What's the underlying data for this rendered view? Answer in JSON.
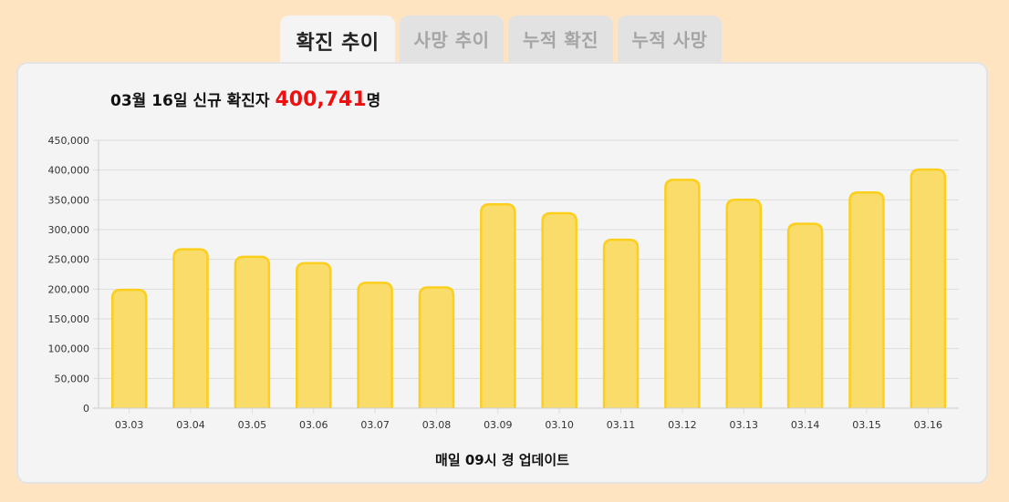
{
  "tabs": [
    {
      "label": "확진 추이",
      "active": true
    },
    {
      "label": "사망 추이",
      "active": false
    },
    {
      "label": "누적 확진",
      "active": false
    },
    {
      "label": "누적 사망",
      "active": false
    }
  ],
  "headline": {
    "prefix": "03월 16일 신규 확진자 ",
    "value": "400,741",
    "suffix": "명"
  },
  "footer_note": "매일 09시 경 업데이트",
  "colors": {
    "bar_fill": "#fadc6a",
    "bar_stroke": "#fccf1d",
    "highlight": "#ee1010",
    "grid": "#dddddd"
  },
  "chart_data": {
    "type": "bar",
    "categories": [
      "03.03",
      "03.04",
      "03.05",
      "03.06",
      "03.07",
      "03.08",
      "03.09",
      "03.10",
      "03.11",
      "03.12",
      "03.13",
      "03.14",
      "03.15",
      "03.16"
    ],
    "values": [
      198803,
      266853,
      254327,
      243628,
      210716,
      202721,
      342446,
      327549,
      282987,
      383665,
      350190,
      309790,
      362338,
      400741
    ],
    "ylim": [
      0,
      450000
    ],
    "yticks": [
      "0",
      "50,000",
      "100,000",
      "150,000",
      "200,000",
      "250,000",
      "300,000",
      "350,000",
      "400,000",
      "450,000"
    ],
    "ytick_values": [
      0,
      50000,
      100000,
      150000,
      200000,
      250000,
      300000,
      350000,
      400000,
      450000
    ],
    "grid": true,
    "legend": "none"
  }
}
